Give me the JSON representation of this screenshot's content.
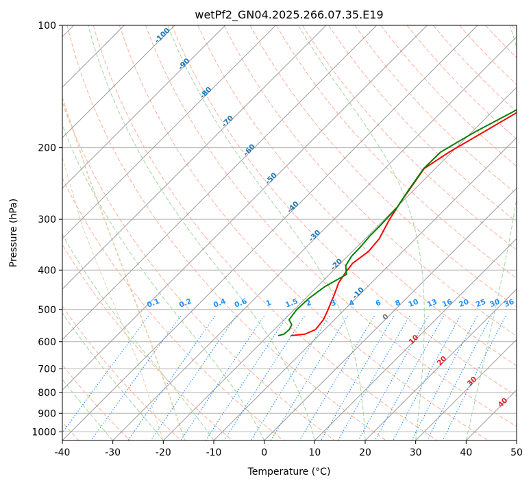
{
  "chart_data": {
    "type": "line",
    "chart_kind": "skew-T log-P diagram",
    "title": "wetPf2_GN04.2025.266.07.35.E19",
    "xlabel": "Temperature (°C)",
    "ylabel": "Pressure (hPa)",
    "xlim": [
      -40,
      50
    ],
    "ylim_hpa": [
      1050,
      100
    ],
    "x_ticks": [
      -40,
      -30,
      -20,
      -10,
      0,
      10,
      20,
      30,
      40,
      50
    ],
    "y_ticks": [
      100,
      200,
      300,
      400,
      500,
      600,
      700,
      800,
      900,
      1000
    ],
    "grid": true,
    "colors": {
      "temperature": "#ff0000",
      "dewpoint": "#008000",
      "isotherm": "#9b9b9b",
      "dry_adiabat": "#fdae99",
      "moist_adiabat": "#9fd49f",
      "mixing_ratio": "#1e90ff",
      "height_label": "#1f77b4",
      "lcl_curve": "#e7cfaa"
    },
    "series": [
      {
        "name": "Temperature",
        "points": [
          [
            -15.5,
            580
          ],
          [
            -13,
            575
          ],
          [
            -11.8,
            560
          ],
          [
            -12.2,
            530
          ],
          [
            -13.3,
            500
          ],
          [
            -15.0,
            460
          ],
          [
            -16.5,
            430
          ],
          [
            -17.2,
            405
          ],
          [
            -17.6,
            385
          ],
          [
            -16.8,
            360
          ],
          [
            -17.2,
            335
          ],
          [
            -19.0,
            300
          ],
          [
            -20.3,
            270
          ],
          [
            -21.3,
            245
          ],
          [
            -22.2,
            225
          ],
          [
            -20.5,
            205
          ],
          [
            -17.5,
            182
          ],
          [
            -14.8,
            163
          ],
          [
            -13.2,
            148
          ],
          [
            -10.8,
            135
          ],
          [
            -8.5,
            125
          ],
          [
            -6.3,
            116
          ],
          [
            -4.0,
            108
          ],
          [
            -1.5,
            100
          ]
        ]
      },
      {
        "name": "Dewpoint",
        "points": [
          [
            -18.0,
            580
          ],
          [
            -17.2,
            575
          ],
          [
            -17.0,
            560
          ],
          [
            -17.5,
            545
          ],
          [
            -19.0,
            530
          ],
          [
            -19.5,
            500
          ],
          [
            -19.3,
            470
          ],
          [
            -18.5,
            440
          ],
          [
            -16.6,
            410
          ],
          [
            -18.5,
            390
          ],
          [
            -19.2,
            370
          ],
          [
            -19.3,
            350
          ],
          [
            -19.6,
            330
          ],
          [
            -19.6,
            310
          ],
          [
            -19.9,
            280
          ],
          [
            -21.0,
            255
          ],
          [
            -22.3,
            225
          ],
          [
            -22.2,
            205
          ],
          [
            -19.4,
            183
          ],
          [
            -15.8,
            163
          ],
          [
            -13.4,
            148
          ],
          [
            -10.8,
            135
          ],
          [
            -8.3,
            125
          ],
          [
            -6.0,
            116
          ],
          [
            -3.6,
            108
          ],
          [
            -1.2,
            100
          ]
        ]
      }
    ],
    "height_labels": [
      "-100",
      "-90",
      "-80",
      "-70",
      "-60",
      "-50",
      "-40",
      "-30",
      "-20",
      "-10"
    ],
    "mixing_ratio_labels": [
      "0.1",
      "0.2",
      "0.4",
      "0.6",
      "1",
      "1.5",
      "2",
      "3",
      "4",
      "6",
      "8",
      "10",
      "13",
      "16",
      "20",
      "25",
      "30",
      "36"
    ],
    "moist_adiabat_labels": [
      "0",
      "10",
      "20",
      "30",
      "40"
    ]
  }
}
